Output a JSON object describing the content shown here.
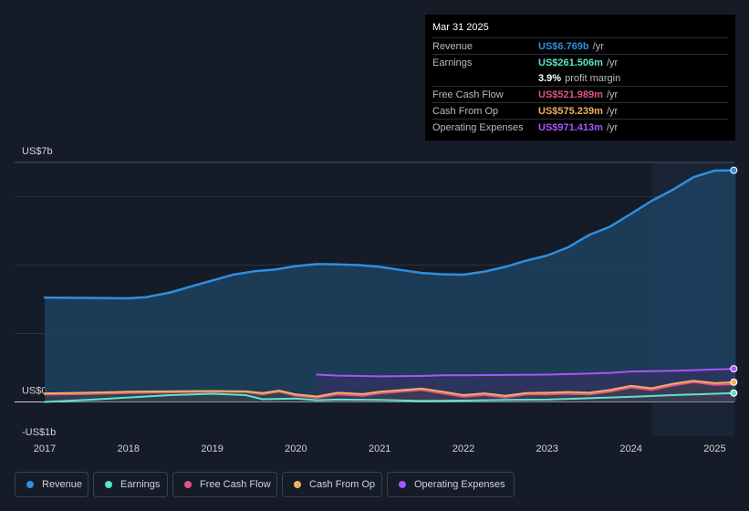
{
  "tooltip": {
    "date": "Mar 31 2025",
    "rows": [
      {
        "label": "Revenue",
        "value": "US$6.769b",
        "unit": "/yr",
        "color": "#2d8fe0"
      },
      {
        "label": "Earnings",
        "value": "US$261.506m",
        "unit": "/yr",
        "color": "#5fe3c8"
      },
      {
        "label": "",
        "value": "3.9%",
        "unit": "profit margin",
        "color": "#ffffff"
      },
      {
        "label": "Free Cash Flow",
        "value": "US$521.989m",
        "unit": "/yr",
        "color": "#e0538a"
      },
      {
        "label": "Cash From Op",
        "value": "US$575.239m",
        "unit": "/yr",
        "color": "#f0b060"
      },
      {
        "label": "Operating Expenses",
        "value": "US$971.413m",
        "unit": "/yr",
        "color": "#a855f7"
      }
    ]
  },
  "legend": [
    {
      "label": "Revenue",
      "color": "#2d8fe0"
    },
    {
      "label": "Earnings",
      "color": "#5fe3c8"
    },
    {
      "label": "Free Cash Flow",
      "color": "#e0538a"
    },
    {
      "label": "Cash From Op",
      "color": "#f0b060"
    },
    {
      "label": "Operating Expenses",
      "color": "#a855f7"
    }
  ],
  "chart_data": {
    "type": "area",
    "title": "",
    "xlabel": "",
    "ylabel": "",
    "y_axis_labels": [
      "US$7b",
      "US$0",
      "-US$1b"
    ],
    "ylim": [
      -1,
      7
    ],
    "xlim": [
      2016.6,
      2025.25
    ],
    "x_ticks": [
      "2017",
      "2018",
      "2019",
      "2020",
      "2021",
      "2022",
      "2023",
      "2024",
      "2025"
    ],
    "highlight_start": 2024.25,
    "series": [
      {
        "name": "Revenue",
        "color": "#2d8fe0",
        "points": [
          [
            2017.0,
            3.05
          ],
          [
            2017.5,
            3.04
          ],
          [
            2018.0,
            3.03
          ],
          [
            2018.2,
            3.06
          ],
          [
            2018.5,
            3.2
          ],
          [
            2018.75,
            3.38
          ],
          [
            2019.0,
            3.55
          ],
          [
            2019.25,
            3.72
          ],
          [
            2019.5,
            3.82
          ],
          [
            2019.75,
            3.87
          ],
          [
            2020.0,
            3.97
          ],
          [
            2020.25,
            4.03
          ],
          [
            2020.5,
            4.02
          ],
          [
            2020.75,
            4.0
          ],
          [
            2021.0,
            3.95
          ],
          [
            2021.25,
            3.86
          ],
          [
            2021.5,
            3.77
          ],
          [
            2021.75,
            3.73
          ],
          [
            2022.0,
            3.72
          ],
          [
            2022.25,
            3.81
          ],
          [
            2022.5,
            3.95
          ],
          [
            2022.75,
            4.13
          ],
          [
            2023.0,
            4.28
          ],
          [
            2023.25,
            4.52
          ],
          [
            2023.5,
            4.88
          ],
          [
            2023.75,
            5.12
          ],
          [
            2024.0,
            5.5
          ],
          [
            2024.25,
            5.88
          ],
          [
            2024.5,
            6.2
          ],
          [
            2024.75,
            6.57
          ],
          [
            2025.0,
            6.76
          ],
          [
            2025.25,
            6.77
          ]
        ]
      },
      {
        "name": "Earnings",
        "color": "#5fe3c8",
        "points": [
          [
            2017.0,
            0.0
          ],
          [
            2017.5,
            0.06
          ],
          [
            2018.0,
            0.13
          ],
          [
            2018.5,
            0.2
          ],
          [
            2019.0,
            0.24
          ],
          [
            2019.4,
            0.2
          ],
          [
            2019.6,
            0.08
          ],
          [
            2020.0,
            0.1
          ],
          [
            2020.25,
            0.05
          ],
          [
            2020.5,
            0.07
          ],
          [
            2021.0,
            0.06
          ],
          [
            2021.5,
            0.03
          ],
          [
            2022.0,
            0.04
          ],
          [
            2022.5,
            0.06
          ],
          [
            2023.0,
            0.07
          ],
          [
            2023.5,
            0.11
          ],
          [
            2024.0,
            0.15
          ],
          [
            2024.5,
            0.2
          ],
          [
            2025.0,
            0.24
          ],
          [
            2025.25,
            0.26
          ]
        ]
      },
      {
        "name": "Free Cash Flow",
        "color": "#e0538a",
        "points": [
          [
            2017.0,
            0.22
          ],
          [
            2017.5,
            0.23
          ],
          [
            2018.0,
            0.26
          ],
          [
            2018.5,
            0.28
          ],
          [
            2019.0,
            0.3
          ],
          [
            2019.4,
            0.29
          ],
          [
            2019.6,
            0.22
          ],
          [
            2019.8,
            0.3
          ],
          [
            2020.0,
            0.18
          ],
          [
            2020.25,
            0.12
          ],
          [
            2020.5,
            0.22
          ],
          [
            2020.8,
            0.18
          ],
          [
            2021.0,
            0.25
          ],
          [
            2021.5,
            0.35
          ],
          [
            2021.75,
            0.25
          ],
          [
            2022.0,
            0.15
          ],
          [
            2022.25,
            0.2
          ],
          [
            2022.5,
            0.13
          ],
          [
            2022.75,
            0.22
          ],
          [
            2023.0,
            0.22
          ],
          [
            2023.25,
            0.24
          ],
          [
            2023.5,
            0.22
          ],
          [
            2023.75,
            0.3
          ],
          [
            2024.0,
            0.42
          ],
          [
            2024.25,
            0.35
          ],
          [
            2024.5,
            0.48
          ],
          [
            2024.75,
            0.58
          ],
          [
            2025.0,
            0.5
          ],
          [
            2025.25,
            0.52
          ]
        ]
      },
      {
        "name": "Cash From Op",
        "color": "#f0b060",
        "points": [
          [
            2017.0,
            0.25
          ],
          [
            2017.5,
            0.27
          ],
          [
            2018.0,
            0.3
          ],
          [
            2018.5,
            0.31
          ],
          [
            2019.0,
            0.32
          ],
          [
            2019.4,
            0.31
          ],
          [
            2019.6,
            0.26
          ],
          [
            2019.8,
            0.33
          ],
          [
            2020.0,
            0.22
          ],
          [
            2020.25,
            0.16
          ],
          [
            2020.5,
            0.27
          ],
          [
            2020.8,
            0.23
          ],
          [
            2021.0,
            0.3
          ],
          [
            2021.5,
            0.39
          ],
          [
            2021.75,
            0.3
          ],
          [
            2022.0,
            0.2
          ],
          [
            2022.25,
            0.25
          ],
          [
            2022.5,
            0.18
          ],
          [
            2022.75,
            0.26
          ],
          [
            2023.0,
            0.27
          ],
          [
            2023.25,
            0.29
          ],
          [
            2023.5,
            0.27
          ],
          [
            2023.75,
            0.35
          ],
          [
            2024.0,
            0.47
          ],
          [
            2024.25,
            0.4
          ],
          [
            2024.5,
            0.53
          ],
          [
            2024.75,
            0.62
          ],
          [
            2025.0,
            0.55
          ],
          [
            2025.25,
            0.58
          ]
        ]
      },
      {
        "name": "Operating Expenses",
        "color": "#a855f7",
        "points": [
          [
            2020.25,
            0.8
          ],
          [
            2020.5,
            0.77
          ],
          [
            2021.0,
            0.75
          ],
          [
            2021.5,
            0.76
          ],
          [
            2021.75,
            0.78
          ],
          [
            2022.0,
            0.78
          ],
          [
            2022.5,
            0.79
          ],
          [
            2023.0,
            0.8
          ],
          [
            2023.5,
            0.83
          ],
          [
            2023.75,
            0.85
          ],
          [
            2024.0,
            0.89
          ],
          [
            2024.5,
            0.91
          ],
          [
            2025.0,
            0.95
          ],
          [
            2025.25,
            0.97
          ]
        ]
      }
    ]
  }
}
